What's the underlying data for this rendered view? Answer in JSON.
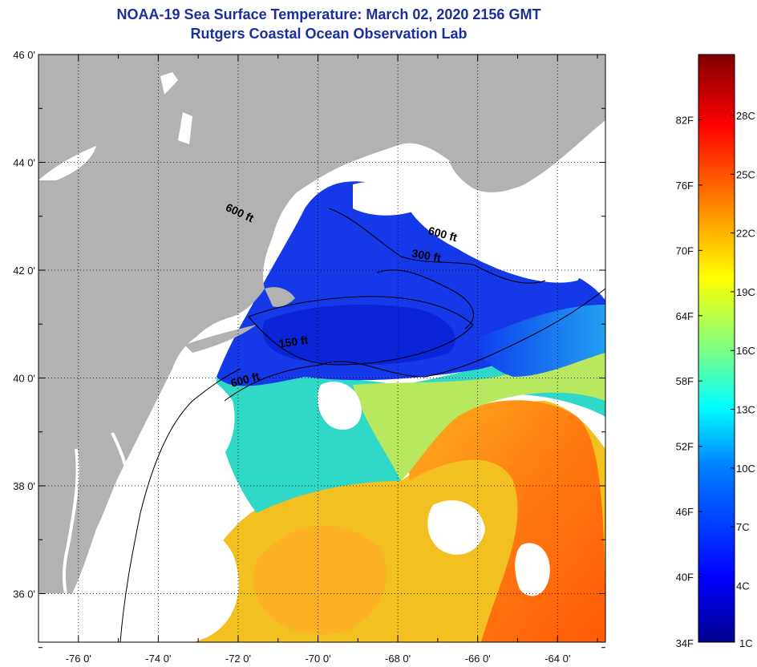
{
  "title": {
    "line1": "NOAA-19 Sea Surface Temperature:  March 02, 2020 2156 GMT",
    "line2": "Rutgers Coastal Ocean Observation Lab"
  },
  "map": {
    "lon_range": [
      -77.0,
      -62.8
    ],
    "lat_range": [
      35.1,
      46.0
    ],
    "lon_ticks": [
      {
        "value": -76,
        "label": "-76 0'"
      },
      {
        "value": -74,
        "label": "-74 0'"
      },
      {
        "value": -72,
        "label": "-72 0'"
      },
      {
        "value": -70,
        "label": "-70 0'"
      },
      {
        "value": -68,
        "label": "-68 0'"
      },
      {
        "value": -66,
        "label": "-66 0'"
      },
      {
        "value": -64,
        "label": "-64 0'"
      }
    ],
    "lat_ticks": [
      {
        "value": 46,
        "label": "46 0'"
      },
      {
        "value": 44,
        "label": "44 0'"
      },
      {
        "value": 42,
        "label": "42 0'"
      },
      {
        "value": 40,
        "label": "40 0'"
      },
      {
        "value": 38,
        "label": "38 0'"
      },
      {
        "value": 36,
        "label": "36 0'"
      }
    ],
    "contour_labels": [
      {
        "text": "600 ft",
        "lon": -72.0,
        "lat": 43.0,
        "rotate": 25
      },
      {
        "text": "600 ft",
        "lon": -66.9,
        "lat": 42.6,
        "rotate": 15
      },
      {
        "text": "300 ft",
        "lon": -67.3,
        "lat": 42.2,
        "rotate": 10
      },
      {
        "text": "150 ft",
        "lon": -70.6,
        "lat": 40.6,
        "rotate": -8
      },
      {
        "text": "600 ft",
        "lon": -71.8,
        "lat": 39.9,
        "rotate": -15
      }
    ],
    "colors": {
      "land": "#b2b2b2",
      "cloud": "#ffffff",
      "contour": "#000000"
    }
  },
  "colorbar": {
    "min_label": "34F",
    "min_c_label": "1C",
    "fahrenheit": [
      "82F",
      "76F",
      "70F",
      "64F",
      "58F",
      "52F",
      "46F",
      "40F"
    ],
    "celsius": [
      "28C",
      "25C",
      "22C",
      "19C",
      "16C",
      "13C",
      "10C",
      "7C",
      "4C"
    ],
    "colors": [
      "#00008f",
      "#0000ff",
      "#0080ff",
      "#00ffff",
      "#80ff80",
      "#ffff00",
      "#ff8000",
      "#ff0000",
      "#800000"
    ]
  }
}
